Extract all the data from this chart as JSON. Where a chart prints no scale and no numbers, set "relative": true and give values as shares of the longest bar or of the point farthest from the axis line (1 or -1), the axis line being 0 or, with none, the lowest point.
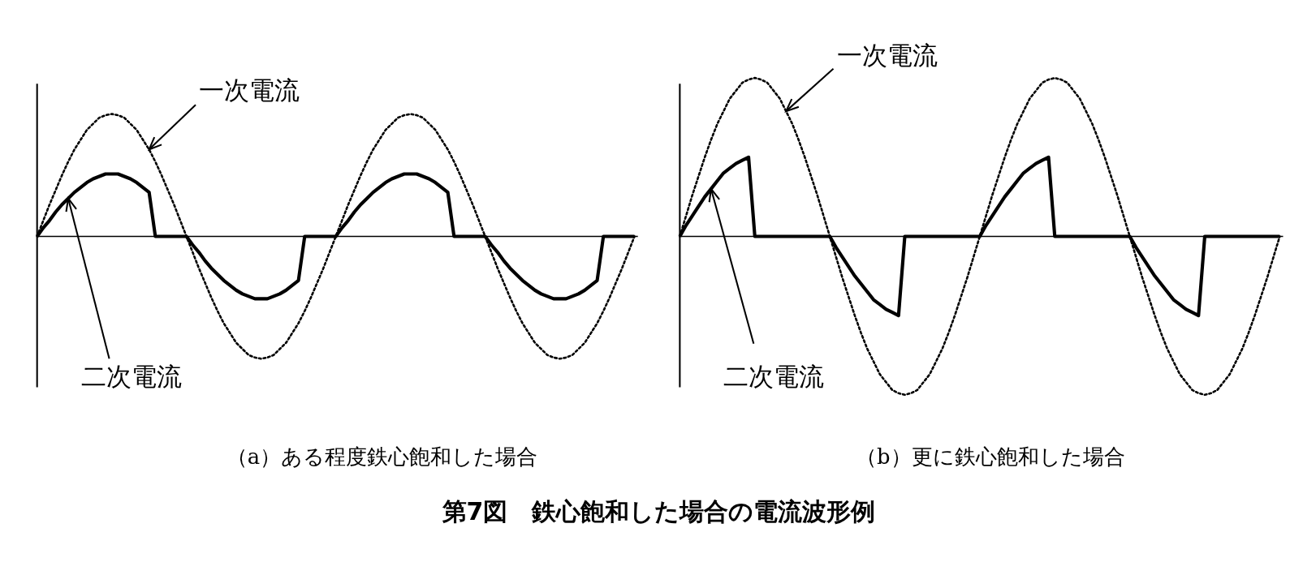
{
  "chart_data": [
    {
      "type": "line",
      "relative": true,
      "title": "（a）ある程度鉄心飽和した場合",
      "categories": [
        null,
        null,
        null,
        null,
        null,
        null,
        null,
        null,
        null,
        null,
        null,
        null,
        null,
        null,
        null,
        null,
        null,
        null,
        null,
        null,
        null,
        null,
        null,
        null,
        null,
        null,
        null,
        null,
        null,
        null,
        null,
        null,
        null,
        null,
        null,
        null,
        null,
        null,
        null,
        null,
        null,
        null,
        null,
        null,
        null,
        null,
        null,
        null,
        null,
        null,
        null,
        null,
        null,
        null,
        null,
        null,
        null,
        null,
        null,
        null,
        null,
        null,
        null,
        null,
        null,
        null,
        null,
        null,
        null,
        null,
        null,
        null,
        null,
        null,
        null,
        null,
        null,
        null,
        null,
        null,
        null,
        null,
        null,
        null,
        null,
        null,
        null,
        null,
        null,
        null,
        null,
        null,
        null,
        null,
        null,
        null,
        null
      ],
      "series": [
        {
          "name": "一次電流",
          "color": "#000000",
          "line_style": "dotted",
          "values": [
            0,
            0.13,
            0.26,
            0.38,
            0.5,
            0.61,
            0.71,
            0.79,
            0.87,
            0.92,
            0.97,
            0.99,
            1,
            0.99,
            0.97,
            0.92,
            0.87,
            0.79,
            0.71,
            0.61,
            0.5,
            0.38,
            0.26,
            0.13,
            0,
            -0.13,
            -0.26,
            -0.38,
            -0.5,
            -0.61,
            -0.71,
            -0.79,
            -0.87,
            -0.92,
            -0.97,
            -0.99,
            -1,
            -0.99,
            -0.97,
            -0.92,
            -0.87,
            -0.79,
            -0.71,
            -0.61,
            -0.5,
            -0.38,
            -0.26,
            -0.13,
            0,
            0.13,
            0.26,
            0.38,
            0.5,
            0.61,
            0.71,
            0.79,
            0.87,
            0.92,
            0.97,
            0.99,
            1,
            0.99,
            0.97,
            0.92,
            0.87,
            0.79,
            0.71,
            0.61,
            0.5,
            0.38,
            0.26,
            0.13,
            0,
            -0.13,
            -0.26,
            -0.38,
            -0.5,
            -0.61,
            -0.71,
            -0.79,
            -0.87,
            -0.92,
            -0.97,
            -0.99,
            -1,
            -0.99,
            -0.97,
            -0.92,
            -0.87,
            -0.79,
            -0.71,
            -0.61,
            -0.5,
            -0.38,
            -0.26,
            -0.13,
            0
          ]
        },
        {
          "name": "二次電流",
          "color": "#000000",
          "line_style": "solid",
          "values": [
            0,
            0.07,
            0.13,
            0.2,
            0.26,
            0.31,
            0.36,
            0.4,
            0.44,
            0.47,
            0.49,
            0.51,
            0.51,
            0.51,
            0.49,
            0.47,
            0.44,
            0.4,
            0.36,
            0,
            0,
            0,
            0,
            0,
            0,
            -0.07,
            -0.13,
            -0.2,
            -0.26,
            -0.31,
            -0.36,
            -0.4,
            -0.44,
            -0.47,
            -0.49,
            -0.51,
            -0.51,
            -0.51,
            -0.49,
            -0.47,
            -0.44,
            -0.4,
            -0.36,
            0,
            0,
            0,
            0,
            0,
            0,
            0.07,
            0.13,
            0.2,
            0.26,
            0.31,
            0.36,
            0.4,
            0.44,
            0.47,
            0.49,
            0.51,
            0.51,
            0.51,
            0.49,
            0.47,
            0.44,
            0.4,
            0.36,
            0,
            0,
            0,
            0,
            0,
            0,
            -0.07,
            -0.13,
            -0.2,
            -0.26,
            -0.31,
            -0.36,
            -0.4,
            -0.44,
            -0.47,
            -0.49,
            -0.51,
            -0.51,
            -0.51,
            -0.49,
            -0.47,
            -0.44,
            -0.4,
            -0.36,
            0,
            0,
            0,
            0,
            0,
            0
          ]
        }
      ]
    },
    {
      "type": "line",
      "relative": true,
      "title": "（b）更に鉄心飽和した場合",
      "categories": [
        null,
        null,
        null,
        null,
        null,
        null,
        null,
        null,
        null,
        null,
        null,
        null,
        null,
        null,
        null,
        null,
        null,
        null,
        null,
        null,
        null,
        null,
        null,
        null,
        null,
        null,
        null,
        null,
        null,
        null,
        null,
        null,
        null,
        null,
        null,
        null,
        null,
        null,
        null,
        null,
        null,
        null,
        null,
        null,
        null,
        null,
        null,
        null,
        null,
        null,
        null,
        null,
        null,
        null,
        null,
        null,
        null,
        null,
        null,
        null,
        null,
        null,
        null,
        null,
        null,
        null,
        null,
        null,
        null,
        null,
        null,
        null,
        null,
        null,
        null,
        null,
        null,
        null,
        null,
        null,
        null,
        null,
        null,
        null,
        null,
        null,
        null,
        null,
        null,
        null,
        null,
        null,
        null,
        null,
        null,
        null,
        null
      ],
      "series": [
        {
          "name": "一次電流",
          "color": "#000000",
          "line_style": "dotted",
          "values": [
            0,
            0.13,
            0.26,
            0.38,
            0.5,
            0.61,
            0.71,
            0.79,
            0.87,
            0.92,
            0.97,
            0.99,
            1,
            0.99,
            0.97,
            0.92,
            0.87,
            0.79,
            0.71,
            0.61,
            0.5,
            0.38,
            0.26,
            0.13,
            0,
            -0.13,
            -0.26,
            -0.38,
            -0.5,
            -0.61,
            -0.71,
            -0.79,
            -0.87,
            -0.92,
            -0.97,
            -0.99,
            -1,
            -0.99,
            -0.97,
            -0.92,
            -0.87,
            -0.79,
            -0.71,
            -0.61,
            -0.5,
            -0.38,
            -0.26,
            -0.13,
            0,
            0.13,
            0.26,
            0.38,
            0.5,
            0.61,
            0.71,
            0.79,
            0.87,
            0.92,
            0.97,
            0.99,
            1,
            0.99,
            0.97,
            0.92,
            0.87,
            0.79,
            0.71,
            0.61,
            0.5,
            0.38,
            0.26,
            0.13,
            0,
            -0.13,
            -0.26,
            -0.38,
            -0.5,
            -0.61,
            -0.71,
            -0.79,
            -0.87,
            -0.92,
            -0.97,
            -0.99,
            -1,
            -0.99,
            -0.97,
            -0.92,
            -0.87,
            -0.79,
            -0.71,
            -0.61,
            -0.5,
            -0.38,
            -0.26,
            -0.13,
            0
          ]
        },
        {
          "name": "二次電流",
          "color": "#000000",
          "line_style": "solid",
          "values": [
            0,
            0.07,
            0.13,
            0.19,
            0.25,
            0.3,
            0.35,
            0.4,
            0.43,
            0.46,
            0.48,
            0.5,
            0,
            0,
            0,
            0,
            0,
            0,
            0,
            0,
            0,
            0,
            0,
            0,
            0,
            -0.07,
            -0.13,
            -0.19,
            -0.25,
            -0.3,
            -0.35,
            -0.4,
            -0.43,
            -0.46,
            -0.48,
            -0.5,
            0,
            0,
            0,
            0,
            0,
            0,
            0,
            0,
            0,
            0,
            0,
            0,
            0,
            0.07,
            0.13,
            0.19,
            0.25,
            0.3,
            0.35,
            0.4,
            0.43,
            0.46,
            0.48,
            0.5,
            0,
            0,
            0,
            0,
            0,
            0,
            0,
            0,
            0,
            0,
            0,
            0,
            0,
            -0.07,
            -0.13,
            -0.19,
            -0.25,
            -0.3,
            -0.35,
            -0.4,
            -0.43,
            -0.46,
            -0.48,
            -0.5,
            0,
            0,
            0,
            0,
            0,
            0,
            0,
            0,
            0,
            0,
            0,
            0,
            0
          ]
        }
      ]
    },
    {
      "type": "other",
      "title": "第7図　鉄心飽和した場合の電流波形例"
    }
  ]
}
